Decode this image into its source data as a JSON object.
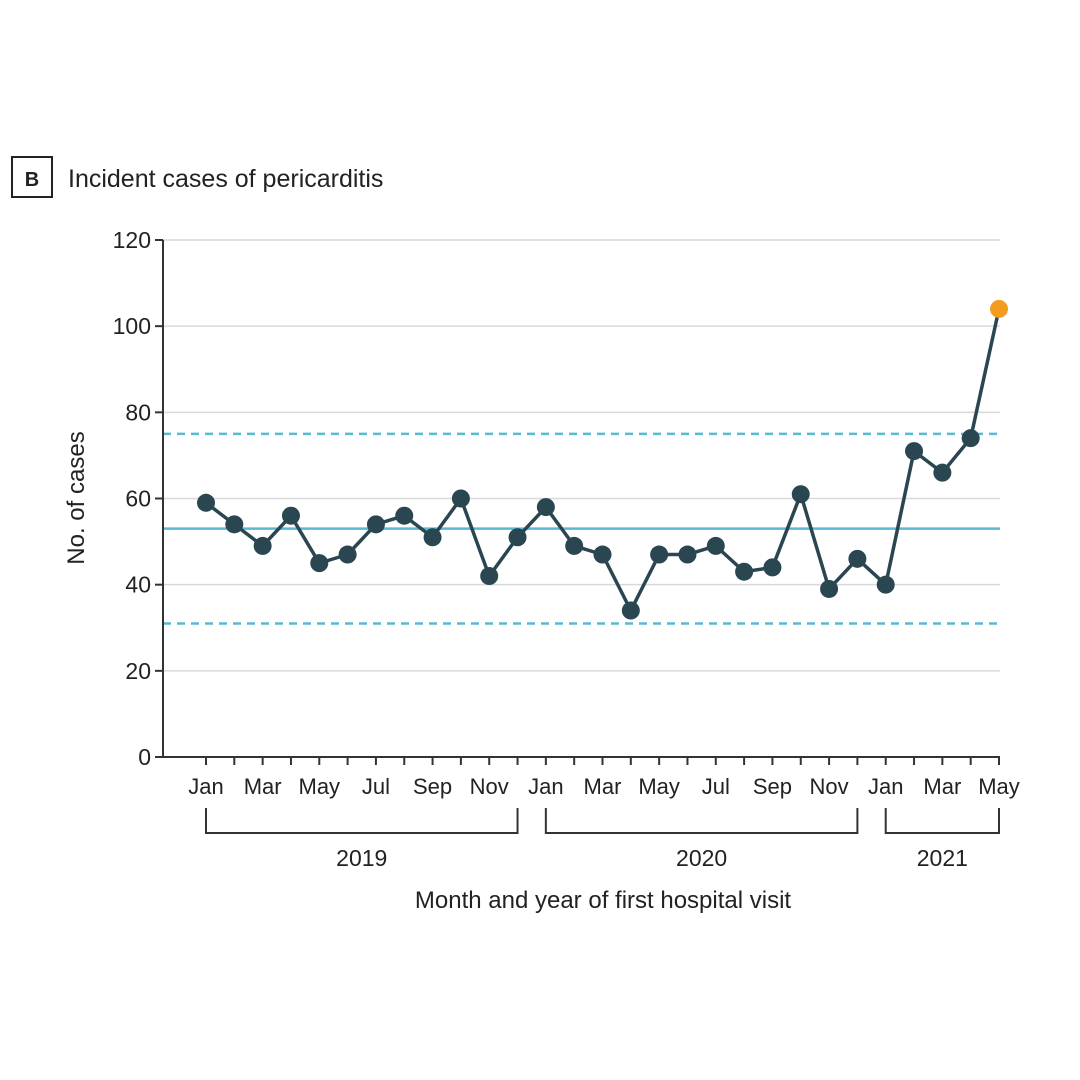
{
  "panel_label": "B",
  "chart_data": {
    "type": "line",
    "title": "Incident cases of pericarditis",
    "xlabel": "Month and year of first hospital visit",
    "ylabel": "No. of cases",
    "ylim": [
      0,
      120
    ],
    "yticks": [
      "0",
      "20",
      "40",
      "60",
      "80",
      "100",
      "120"
    ],
    "grid": "horizontal",
    "x": [
      "Jan 2019",
      "Feb 2019",
      "Mar 2019",
      "Apr 2019",
      "May 2019",
      "Jun 2019",
      "Jul 2019",
      "Aug 2019",
      "Sep 2019",
      "Oct 2019",
      "Nov 2019",
      "Dec 2019",
      "Jan 2020",
      "Feb 2020",
      "Mar 2020",
      "Apr 2020",
      "May 2020",
      "Jun 2020",
      "Jul 2020",
      "Aug 2020",
      "Sep 2020",
      "Oct 2020",
      "Nov 2020",
      "Dec 2020",
      "Jan 2021",
      "Feb 2021",
      "Mar 2021",
      "Apr 2021",
      "May 2021"
    ],
    "xtick_labels": [
      {
        "index": 0,
        "label": "Jan"
      },
      {
        "index": 2,
        "label": "Mar"
      },
      {
        "index": 4,
        "label": "May"
      },
      {
        "index": 6,
        "label": "Jul"
      },
      {
        "index": 8,
        "label": "Sep"
      },
      {
        "index": 10,
        "label": "Nov"
      },
      {
        "index": 12,
        "label": "Jan"
      },
      {
        "index": 14,
        "label": "Mar"
      },
      {
        "index": 16,
        "label": "May"
      },
      {
        "index": 18,
        "label": "Jul"
      },
      {
        "index": 20,
        "label": "Sep"
      },
      {
        "index": 22,
        "label": "Nov"
      },
      {
        "index": 24,
        "label": "Jan"
      },
      {
        "index": 26,
        "label": "Mar"
      },
      {
        "index": 28,
        "label": "May"
      }
    ],
    "year_groups": [
      {
        "label": "2019",
        "start": 0,
        "end": 11
      },
      {
        "label": "2020",
        "start": 12,
        "end": 23
      },
      {
        "label": "2021",
        "start": 24,
        "end": 28
      }
    ],
    "series": [
      {
        "values": [
          59,
          54,
          49,
          56,
          45,
          47,
          54,
          56,
          51,
          60,
          42,
          51,
          58,
          49,
          47,
          34,
          47,
          47,
          49,
          43,
          44,
          61,
          39,
          46,
          40,
          71,
          66,
          74,
          104
        ],
        "color": "#2a4650",
        "highlight_last_color": "#f39c1f"
      }
    ],
    "reference_lines": [
      {
        "value": 53,
        "style": "solid",
        "color": "#5bb8d4"
      },
      {
        "value": 75,
        "style": "dashed",
        "color": "#5bb8d4"
      },
      {
        "value": 31,
        "style": "dashed",
        "color": "#5bb8d4"
      }
    ]
  }
}
